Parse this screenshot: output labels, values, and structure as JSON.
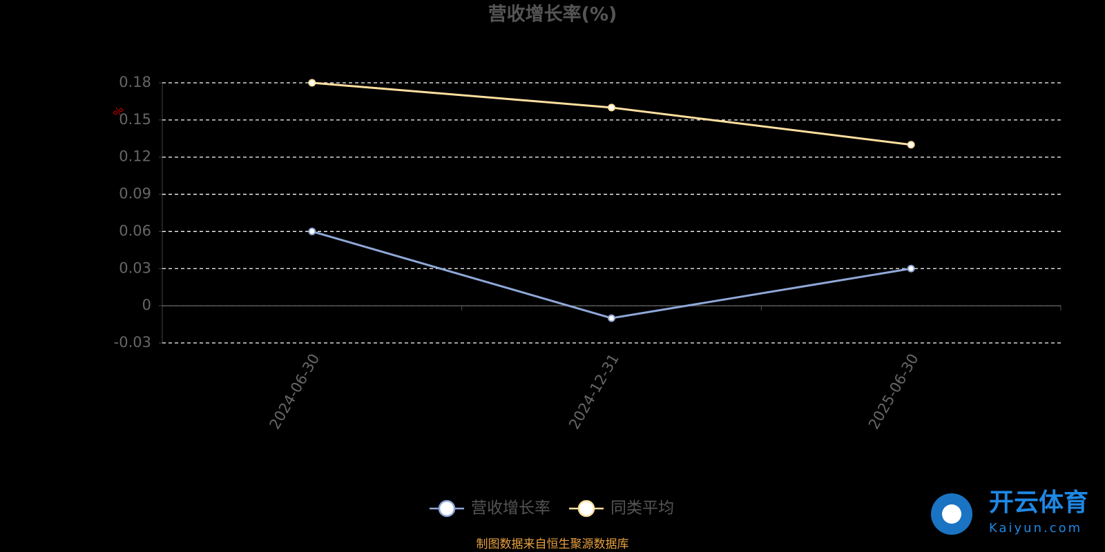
{
  "chart_data": {
    "type": "line",
    "title": "营收增长率(%)",
    "unit": "%",
    "categories": [
      "2024-06-30",
      "2024-12-31",
      "2025-06-30"
    ],
    "series": [
      {
        "name": "营收增长率",
        "color": "#8fa8d8",
        "values": [
          0.06,
          -0.01,
          0.03
        ]
      },
      {
        "name": "同类平均",
        "color": "#ffe0a0",
        "values": [
          0.18,
          0.16,
          0.13
        ]
      }
    ],
    "ylim": [
      -0.03,
      0.18
    ],
    "yticks": [
      -0.03,
      0,
      0.03,
      0.06,
      0.09,
      0.12,
      0.15,
      0.18
    ],
    "grid": true,
    "legend": "bottom",
    "source": "制图数据来自恒生聚源数据库"
  },
  "watermark": {
    "name": "开云体育",
    "site": "Kaiyun.com"
  }
}
